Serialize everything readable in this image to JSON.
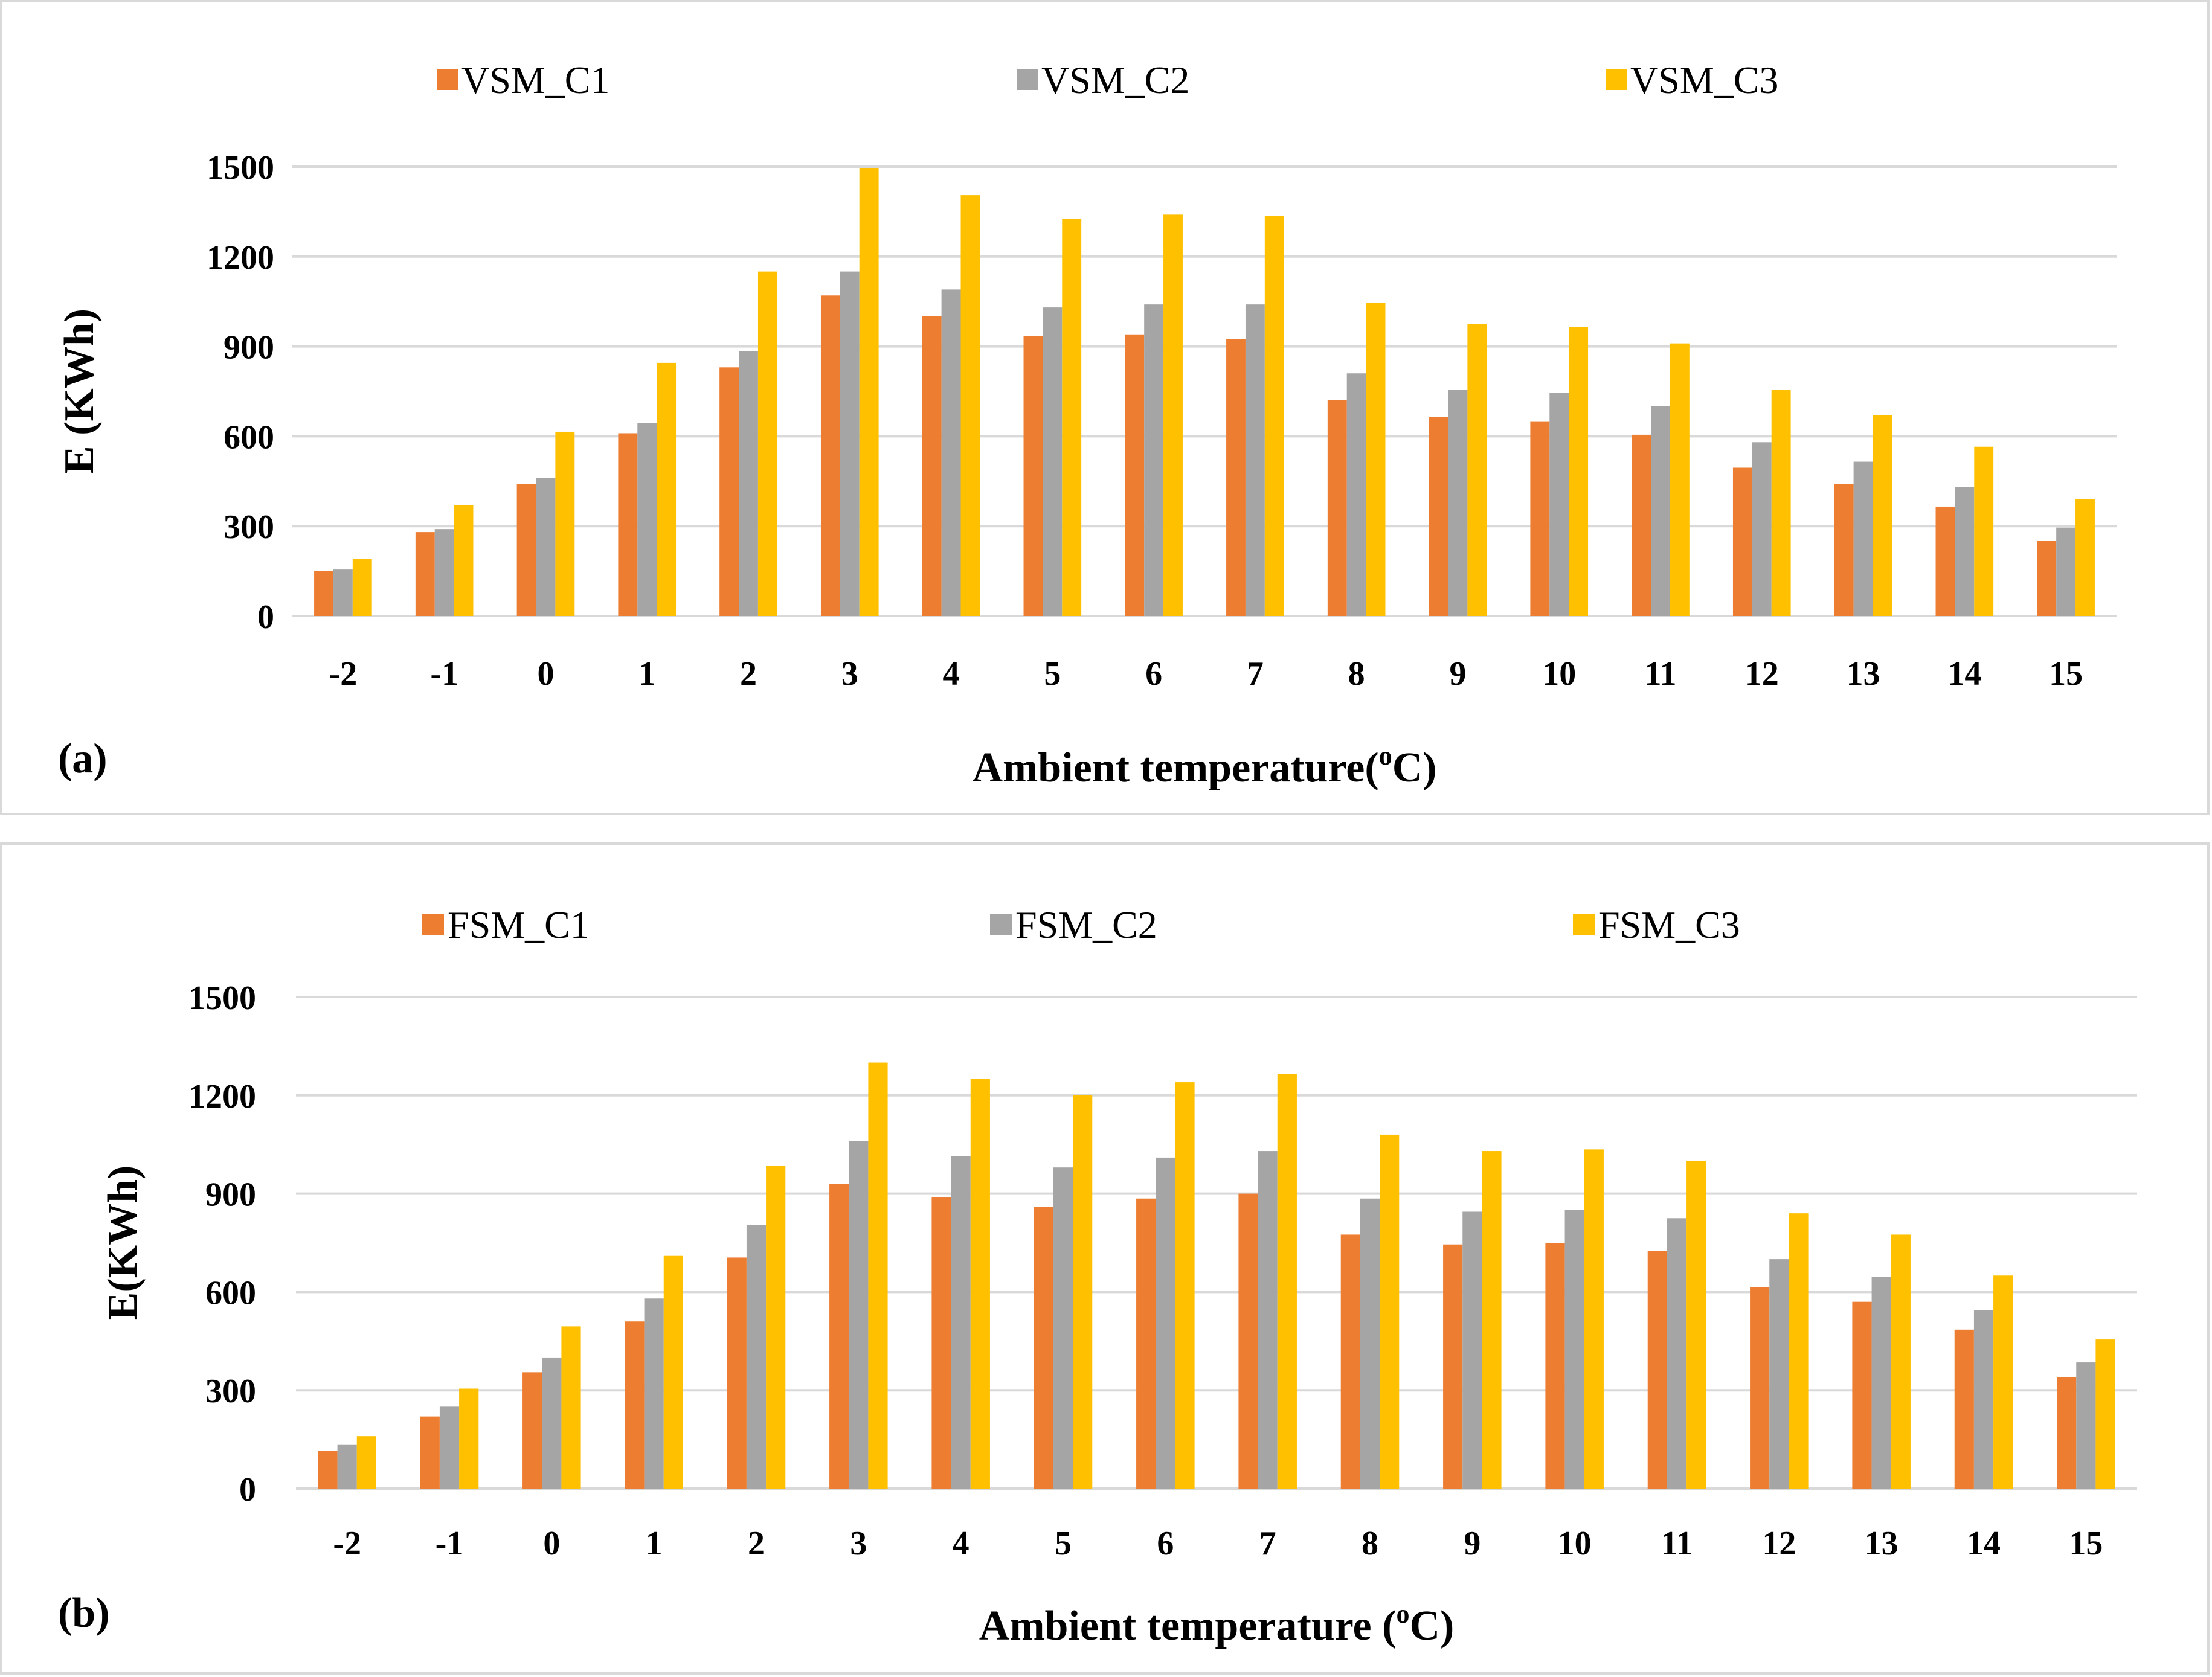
{
  "colors": {
    "c1": "#ED7D31",
    "c2": "#A5A5A5",
    "c3": "#FFC000",
    "grid": "#D9D9D9"
  },
  "chart_data": [
    {
      "type": "bar",
      "panel_label": "(a)",
      "title": "",
      "xlabel": "Ambient temperature(",
      "xlabel_sup": "o",
      "xlabel_end": "C)",
      "ylabel": "E (KWh)",
      "ylim": [
        0,
        1500
      ],
      "yticks": [
        "0",
        "300",
        "600",
        "900",
        "1200",
        "1500"
      ],
      "categories": [
        "-2",
        "-1",
        "0",
        "1",
        "2",
        "3",
        "4",
        "5",
        "6",
        "7",
        "8",
        "9",
        "10",
        "11",
        "12",
        "13",
        "14",
        "15"
      ],
      "series": [
        {
          "name": "VSM_C1",
          "values": [
            150,
            280,
            440,
            610,
            830,
            1070,
            1000,
            935,
            940,
            925,
            720,
            665,
            650,
            605,
            495,
            440,
            365,
            250
          ]
        },
        {
          "name": "VSM_C2",
          "values": [
            155,
            290,
            460,
            645,
            885,
            1150,
            1090,
            1030,
            1040,
            1040,
            810,
            755,
            745,
            700,
            580,
            515,
            430,
            295
          ]
        },
        {
          "name": "VSM_C3",
          "values": [
            190,
            370,
            615,
            845,
            1150,
            1495,
            1405,
            1325,
            1340,
            1335,
            1045,
            975,
            965,
            910,
            755,
            670,
            565,
            390
          ]
        }
      ]
    },
    {
      "type": "bar",
      "panel_label": "(b)",
      "title": "",
      "xlabel": "Ambient temperature (",
      "xlabel_sup": "o",
      "xlabel_end": "C)",
      "ylabel": "E(KWh)",
      "ylim": [
        0,
        1500
      ],
      "yticks": [
        "0",
        "300",
        "600",
        "900",
        "1200",
        "1500"
      ],
      "categories": [
        "-2",
        "-1",
        "0",
        "1",
        "2",
        "3",
        "4",
        "5",
        "6",
        "7",
        "8",
        "9",
        "10",
        "11",
        "12",
        "13",
        "14",
        "15"
      ],
      "series": [
        {
          "name": "FSM_C1",
          "values": [
            115,
            220,
            355,
            510,
            705,
            930,
            890,
            860,
            885,
            900,
            775,
            745,
            750,
            725,
            615,
            570,
            485,
            340
          ]
        },
        {
          "name": "FSM_C2",
          "values": [
            135,
            250,
            400,
            580,
            805,
            1060,
            1015,
            980,
            1010,
            1030,
            885,
            845,
            850,
            825,
            700,
            645,
            545,
            385
          ]
        },
        {
          "name": "FSM_C3",
          "values": [
            160,
            305,
            495,
            710,
            985,
            1300,
            1250,
            1200,
            1240,
            1265,
            1080,
            1030,
            1035,
            1000,
            840,
            775,
            650,
            455
          ]
        }
      ]
    }
  ]
}
